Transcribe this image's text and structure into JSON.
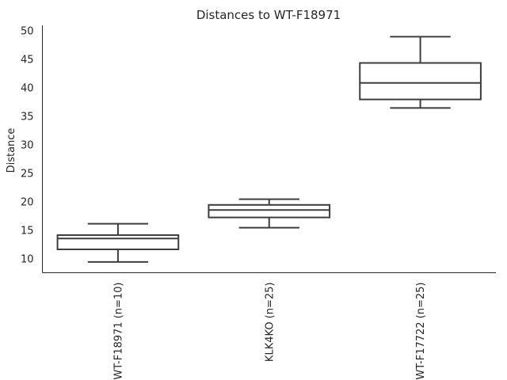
{
  "chart_data": {
    "type": "box",
    "title": "Distances to WT-F18971",
    "xlabel": "",
    "ylabel": "Distance",
    "ylim": [
      7.6,
      51.0
    ],
    "yticks": [
      10,
      15,
      20,
      25,
      30,
      35,
      40,
      45,
      50
    ],
    "grid": false,
    "categories": [
      "WT-F18971 (n=10)",
      "KLK4KO (n=25)",
      "WT-F17722 (n=25)"
    ],
    "boxes": [
      {
        "category": "WT-F18971 (n=10)",
        "whisker_low": 9.5,
        "q1": 11.7,
        "median": 13.6,
        "q3": 14.2,
        "whisker_high": 16.2
      },
      {
        "category": "KLK4KO (n=25)",
        "whisker_low": 15.5,
        "q1": 17.3,
        "median": 18.6,
        "q3": 19.5,
        "whisker_high": 20.5
      },
      {
        "category": "WT-F17722 (n=25)",
        "whisker_low": 36.5,
        "q1": 38.0,
        "median": 40.9,
        "q3": 44.4,
        "whisker_high": 49.0
      }
    ]
  }
}
